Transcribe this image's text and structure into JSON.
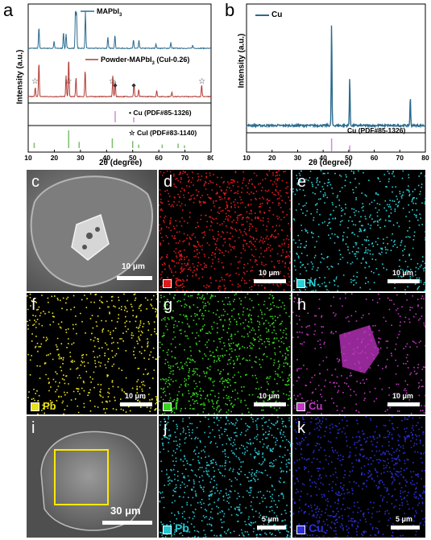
{
  "panels": {
    "a": {
      "letter": "a",
      "legend_top": "MAPbI",
      "legend_top_sub": "3",
      "legend_mid_pre": "Powder-MAPbI",
      "legend_mid_sub": "3",
      "legend_mid_post": " (CuI-0.26)",
      "ref_cu": "Cu (PDF#85-1326)",
      "ref_cui": "CuI (PDF#83-1140)",
      "ylabel": "Intensity (a.u.)",
      "xlabel": "2θ (degree)",
      "xticks": [
        "10",
        "20",
        "30",
        "40",
        "50",
        "60",
        "70",
        "80"
      ]
    },
    "b": {
      "letter": "b",
      "legend": "Cu",
      "ref": "Cu (PDF#85-1326)",
      "ylabel": "Intensity (a.u.)",
      "xlabel": "2θ (degree)",
      "xticks": [
        "10",
        "20",
        "30",
        "40",
        "50",
        "60",
        "70",
        "80"
      ]
    },
    "c": {
      "letter": "c",
      "scale": "10 μm"
    },
    "d": {
      "letter": "d",
      "scale": "10 μm",
      "element": "C",
      "color": "#e0191c"
    },
    "e": {
      "letter": "e",
      "scale": "10 μm",
      "element": "N",
      "color": "#2ad0d6"
    },
    "f": {
      "letter": "f",
      "scale": "10 μm",
      "element": "Pb",
      "color": "#e9e11c"
    },
    "g": {
      "letter": "g",
      "scale": "10 μm",
      "element": "I",
      "color": "#37d41f"
    },
    "h": {
      "letter": "h",
      "scale": "10 μm",
      "element": "Cu",
      "color": "#c535c8"
    },
    "i": {
      "letter": "i",
      "scale": "30 μm"
    },
    "j": {
      "letter": "j",
      "scale": "5 μm",
      "element": "Pb",
      "color": "#27c4cf"
    },
    "k": {
      "letter": "k",
      "scale": "5 μm",
      "element": "Cu",
      "color": "#2b2fd6"
    }
  },
  "chart_data": [
    {
      "type": "line",
      "panel": "a",
      "xlabel": "2θ (degree)",
      "ylabel": "Intensity (a.u.)",
      "xlim": [
        10,
        80
      ],
      "series": [
        {
          "name": "MAPbI3",
          "color": "#2a6b8e",
          "peaks": [
            [
              14.1,
              0.55
            ],
            [
              19.9,
              0.18
            ],
            [
              23.5,
              0.42
            ],
            [
              24.5,
              0.38
            ],
            [
              28.1,
              1.0
            ],
            [
              28.5,
              0.9
            ],
            [
              31.9,
              0.95
            ],
            [
              40.5,
              0.3
            ],
            [
              43.2,
              0.35
            ],
            [
              50.3,
              0.22
            ],
            [
              52.4,
              0.2
            ],
            [
              58.9,
              0.12
            ],
            [
              64.6,
              0.15
            ],
            [
              73.0,
              0.08
            ]
          ]
        },
        {
          "name": "Powder-MAPbI3 (CuI-0.26)",
          "color": "#b13a33",
          "peaks": [
            [
              12.7,
              0.25
            ],
            [
              14.1,
              0.9
            ],
            [
              24.5,
              0.55
            ],
            [
              25.5,
              1.0
            ],
            [
              28.3,
              0.5
            ],
            [
              31.8,
              0.7
            ],
            [
              42.4,
              0.55
            ],
            [
              43.3,
              0.4
            ],
            [
              50.5,
              0.35
            ],
            [
              52.3,
              0.18
            ],
            [
              59.2,
              0.15
            ],
            [
              65.0,
              0.12
            ],
            [
              76.4,
              0.3
            ]
          ]
        }
      ],
      "markers": [
        {
          "symbol": "*",
          "x": 12.6
        },
        {
          "symbol": "*",
          "x": 25.4
        },
        {
          "symbol": "*",
          "x": 42.2
        },
        {
          "symbol": "•",
          "x": 43.3
        },
        {
          "symbol": "•",
          "x": 50.4
        },
        {
          "symbol": "*",
          "x": 76.5
        }
      ],
      "reference": [
        {
          "name": "Cu (PDF#85-1326)",
          "color": "#c98fd8",
          "lines": [
            [
              43.3,
              1.0
            ],
            [
              50.4,
              0.45
            ]
          ]
        },
        {
          "name": "CuI (PDF#83-1140)",
          "color": "#7bbf69",
          "lines": [
            [
              12.3,
              0.3
            ],
            [
              25.5,
              1.0
            ],
            [
              29.5,
              0.35
            ],
            [
              42.2,
              0.55
            ],
            [
              50.0,
              0.4
            ],
            [
              52.3,
              0.2
            ],
            [
              61.3,
              0.2
            ],
            [
              67.4,
              0.25
            ],
            [
              69.8,
              0.15
            ]
          ]
        }
      ]
    },
    {
      "type": "line",
      "panel": "b",
      "xlabel": "2θ (degree)",
      "ylabel": "Intensity (a.u.)",
      "xlim": [
        10,
        80
      ],
      "series": [
        {
          "name": "Cu",
          "color": "#2a6b8e",
          "peaks": [
            [
              43.3,
              1.0
            ],
            [
              50.4,
              0.47
            ],
            [
              74.1,
              0.28
            ]
          ]
        }
      ],
      "reference": [
        {
          "name": "Cu (PDF#85-1326)",
          "color": "#c98fd8",
          "lines": [
            [
              43.3,
              1.0
            ],
            [
              50.4,
              0.45
            ]
          ]
        }
      ]
    }
  ]
}
